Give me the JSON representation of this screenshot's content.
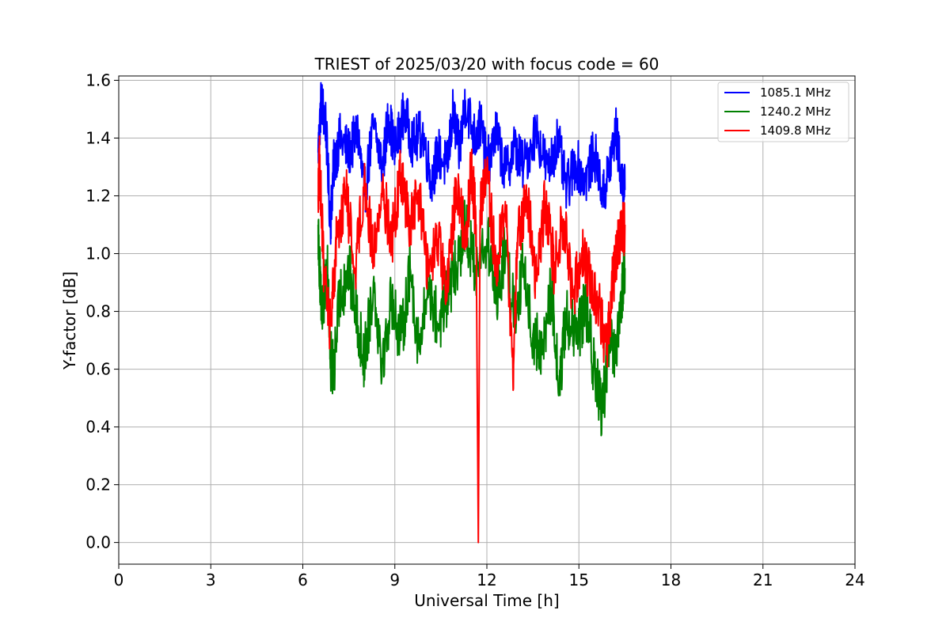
{
  "chart_data": {
    "type": "line",
    "title": "TRIEST of 2025/03/20 with focus code = 60",
    "xlabel": "Universal Time [h]",
    "ylabel": "Y-factor [dB]",
    "xlim": [
      0,
      24
    ],
    "ylim": [
      -0.075,
      1.615
    ],
    "xticks": [
      0,
      3,
      6,
      9,
      12,
      15,
      18,
      21,
      24
    ],
    "yticks": [
      0.0,
      0.2,
      0.4,
      0.6,
      0.8,
      1.0,
      1.2,
      1.4,
      1.6
    ],
    "xtick_labels": [
      "0",
      "3",
      "6",
      "9",
      "12",
      "15",
      "18",
      "21",
      "24"
    ],
    "ytick_labels": [
      "0.0",
      "0.2",
      "0.4",
      "0.6",
      "0.8",
      "1.0",
      "1.2",
      "1.4",
      "1.6"
    ],
    "grid": true,
    "legend_position": "top-right",
    "x_range_of_data": [
      6.5,
      16.5
    ],
    "series": [
      {
        "name": "1085.1 MHz",
        "color": "#0000ff",
        "points": [
          [
            6.5,
            1.35
          ],
          [
            6.6,
            1.53
          ],
          [
            6.75,
            1.45
          ],
          [
            6.9,
            1.1
          ],
          [
            7.0,
            1.3
          ],
          [
            7.2,
            1.4
          ],
          [
            7.5,
            1.35
          ],
          [
            7.8,
            1.42
          ],
          [
            8.0,
            1.2
          ],
          [
            8.3,
            1.44
          ],
          [
            8.6,
            1.3
          ],
          [
            8.8,
            1.48
          ],
          [
            9.0,
            1.35
          ],
          [
            9.3,
            1.49
          ],
          [
            9.6,
            1.38
          ],
          [
            9.9,
            1.42
          ],
          [
            10.2,
            1.25
          ],
          [
            10.4,
            1.35
          ],
          [
            10.7,
            1.3
          ],
          [
            10.9,
            1.49
          ],
          [
            11.1,
            1.35
          ],
          [
            11.3,
            1.53
          ],
          [
            11.6,
            1.4
          ],
          [
            11.8,
            1.45
          ],
          [
            12.0,
            1.3
          ],
          [
            12.3,
            1.42
          ],
          [
            12.6,
            1.28
          ],
          [
            12.9,
            1.37
          ],
          [
            13.2,
            1.3
          ],
          [
            13.6,
            1.43
          ],
          [
            14.0,
            1.28
          ],
          [
            14.3,
            1.4
          ],
          [
            14.6,
            1.22
          ],
          [
            14.9,
            1.32
          ],
          [
            15.2,
            1.25
          ],
          [
            15.5,
            1.35
          ],
          [
            15.8,
            1.2
          ],
          [
            16.0,
            1.3
          ],
          [
            16.2,
            1.43
          ],
          [
            16.4,
            1.25
          ],
          [
            16.5,
            1.22
          ]
        ]
      },
      {
        "name": "1240.2 MHz",
        "color": "#008000",
        "points": [
          [
            6.5,
            1.1
          ],
          [
            6.6,
            0.8
          ],
          [
            6.8,
            0.95
          ],
          [
            6.9,
            0.64
          ],
          [
            7.0,
            0.58
          ],
          [
            7.2,
            0.85
          ],
          [
            7.5,
            0.95
          ],
          [
            7.8,
            0.75
          ],
          [
            8.0,
            0.63
          ],
          [
            8.3,
            0.9
          ],
          [
            8.6,
            0.62
          ],
          [
            8.9,
            0.85
          ],
          [
            9.2,
            0.7
          ],
          [
            9.5,
            0.95
          ],
          [
            9.8,
            0.66
          ],
          [
            10.1,
            0.9
          ],
          [
            10.4,
            0.75
          ],
          [
            10.7,
            0.85
          ],
          [
            11.0,
            0.95
          ],
          [
            11.3,
            1.1
          ],
          [
            11.6,
            0.95
          ],
          [
            12.0,
            1.05
          ],
          [
            12.3,
            0.86
          ],
          [
            12.6,
            1.0
          ],
          [
            12.9,
            0.8
          ],
          [
            13.2,
            0.95
          ],
          [
            13.5,
            0.72
          ],
          [
            13.8,
            0.65
          ],
          [
            14.1,
            0.88
          ],
          [
            14.35,
            0.53
          ],
          [
            14.6,
            0.8
          ],
          [
            14.9,
            0.7
          ],
          [
            15.2,
            0.82
          ],
          [
            15.5,
            0.6
          ],
          [
            15.75,
            0.45
          ],
          [
            16.0,
            0.7
          ],
          [
            16.2,
            0.62
          ],
          [
            16.4,
            0.85
          ],
          [
            16.5,
            0.95
          ]
        ]
      },
      {
        "name": "1409.8 MHz",
        "color": "#ff0000",
        "points": [
          [
            6.5,
            1.2
          ],
          [
            6.55,
            1.32
          ],
          [
            6.7,
            0.9
          ],
          [
            6.9,
            0.75
          ],
          [
            7.1,
            1.05
          ],
          [
            7.4,
            1.22
          ],
          [
            7.7,
            0.95
          ],
          [
            8.0,
            1.25
          ],
          [
            8.3,
            1.0
          ],
          [
            8.6,
            1.22
          ],
          [
            8.9,
            1.05
          ],
          [
            9.2,
            1.28
          ],
          [
            9.5,
            1.1
          ],
          [
            9.8,
            1.2
          ],
          [
            10.1,
            0.92
          ],
          [
            10.4,
            1.05
          ],
          [
            10.7,
            0.85
          ],
          [
            11.0,
            1.25
          ],
          [
            11.3,
            1.05
          ],
          [
            11.5,
            1.3
          ],
          [
            11.65,
            1.1
          ],
          [
            11.72,
            0.0
          ],
          [
            11.78,
            1.15
          ],
          [
            12.0,
            1.28
          ],
          [
            12.3,
            0.95
          ],
          [
            12.6,
            1.18
          ],
          [
            12.85,
            0.57
          ],
          [
            13.0,
            1.05
          ],
          [
            13.3,
            1.2
          ],
          [
            13.6,
            0.92
          ],
          [
            13.9,
            1.18
          ],
          [
            14.2,
            0.95
          ],
          [
            14.5,
            1.12
          ],
          [
            14.8,
            0.85
          ],
          [
            15.1,
            1.02
          ],
          [
            15.4,
            0.9
          ],
          [
            15.7,
            0.8
          ],
          [
            15.9,
            0.65
          ],
          [
            16.1,
            0.9
          ],
          [
            16.3,
            1.05
          ],
          [
            16.5,
            1.1
          ]
        ]
      }
    ]
  }
}
